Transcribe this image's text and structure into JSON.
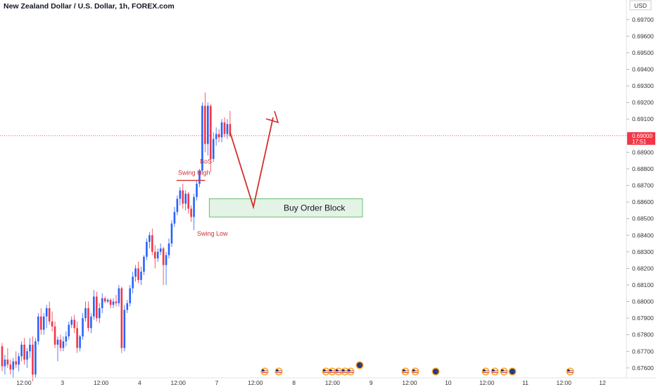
{
  "chart_data": {
    "type": "candlestick",
    "title": "New Zealand Dollar / U.S. Dollar, 1h, FOREX.com",
    "currency": "USD",
    "ylim": [
      0.6754,
      0.6975
    ],
    "y_ticks": [
      "0.69700",
      "0.69600",
      "0.69500",
      "0.69400",
      "0.69300",
      "0.69200",
      "0.69100",
      "0.69000",
      "0.68900",
      "0.68800",
      "0.68700",
      "0.68600",
      "0.68500",
      "0.68400",
      "0.68300",
      "0.68200",
      "0.68100",
      "0.68000",
      "0.67900",
      "0.67800",
      "0.67700",
      "0.67600"
    ],
    "x_ticks": [
      "12:00",
      "3",
      "12:00",
      "4",
      "12:00",
      "7",
      "12:00",
      "8",
      "12:00",
      "9",
      "12:00",
      "10",
      "12:00",
      "11",
      "12:00",
      "12"
    ],
    "current_price": "0.69000",
    "countdown": "17:51",
    "colors": {
      "up": "#2962ff",
      "down": "#f23645",
      "annotation": "#d32f2f",
      "order_block_fill": "#e3f3e6",
      "order_block_border": "#4caf50"
    },
    "candles": [
      [
        0.6773,
        0.6775,
        0.6758,
        0.6761
      ],
      [
        0.6761,
        0.6768,
        0.6756,
        0.6765
      ],
      [
        0.6765,
        0.6772,
        0.676,
        0.6762
      ],
      [
        0.6762,
        0.6765,
        0.6756,
        0.6759
      ],
      [
        0.6759,
        0.6766,
        0.6754,
        0.6764
      ],
      [
        0.6764,
        0.677,
        0.676,
        0.6762
      ],
      [
        0.6762,
        0.6769,
        0.6758,
        0.6767
      ],
      [
        0.6767,
        0.6776,
        0.6764,
        0.6774
      ],
      [
        0.6774,
        0.6778,
        0.6762,
        0.6765
      ],
      [
        0.6765,
        0.6772,
        0.676,
        0.677
      ],
      [
        0.677,
        0.6778,
        0.6766,
        0.6774
      ],
      [
        0.6774,
        0.6779,
        0.6752,
        0.6756
      ],
      [
        0.6756,
        0.6778,
        0.6754,
        0.6776
      ],
      [
        0.6776,
        0.6793,
        0.6774,
        0.6791
      ],
      [
        0.6791,
        0.6796,
        0.678,
        0.6783
      ],
      [
        0.6783,
        0.6793,
        0.678,
        0.6791
      ],
      [
        0.6791,
        0.6798,
        0.6784,
        0.6796
      ],
      [
        0.6796,
        0.68,
        0.6786,
        0.6788
      ],
      [
        0.6788,
        0.6794,
        0.6782,
        0.6785
      ],
      [
        0.6785,
        0.6788,
        0.6772,
        0.6774
      ],
      [
        0.6774,
        0.6779,
        0.6764,
        0.6777
      ],
      [
        0.6777,
        0.678,
        0.677,
        0.6772
      ],
      [
        0.6772,
        0.6779,
        0.677,
        0.6776
      ],
      [
        0.6776,
        0.6782,
        0.6773,
        0.6779
      ],
      [
        0.6779,
        0.6788,
        0.6777,
        0.6786
      ],
      [
        0.6786,
        0.6791,
        0.6784,
        0.6789
      ],
      [
        0.6789,
        0.6792,
        0.6781,
        0.6784
      ],
      [
        0.6784,
        0.6788,
        0.6769,
        0.6772
      ],
      [
        0.6772,
        0.678,
        0.677,
        0.6779
      ],
      [
        0.6779,
        0.6793,
        0.6777,
        0.679
      ],
      [
        0.679,
        0.68,
        0.6788,
        0.6796
      ],
      [
        0.6796,
        0.68,
        0.6782,
        0.6784
      ],
      [
        0.6784,
        0.6793,
        0.6781,
        0.6791
      ],
      [
        0.6791,
        0.6807,
        0.6789,
        0.6803
      ],
      [
        0.6803,
        0.6806,
        0.6788,
        0.679
      ],
      [
        0.679,
        0.6799,
        0.6787,
        0.6796
      ],
      [
        0.6796,
        0.6805,
        0.6793,
        0.6802
      ],
      [
        0.6802,
        0.6803,
        0.6799,
        0.68
      ],
      [
        0.68,
        0.6802,
        0.6799,
        0.6801
      ],
      [
        0.6801,
        0.6802,
        0.6796,
        0.6798
      ],
      [
        0.6798,
        0.6802,
        0.6796,
        0.68
      ],
      [
        0.68,
        0.6804,
        0.6797,
        0.6799
      ],
      [
        0.6799,
        0.681,
        0.6797,
        0.6808
      ],
      [
        0.6808,
        0.6809,
        0.6769,
        0.6772
      ],
      [
        0.6772,
        0.6798,
        0.677,
        0.6795
      ],
      [
        0.6795,
        0.6801,
        0.6793,
        0.6799
      ],
      [
        0.6799,
        0.681,
        0.6797,
        0.6808
      ],
      [
        0.6808,
        0.6818,
        0.6805,
        0.6815
      ],
      [
        0.6815,
        0.6822,
        0.6812,
        0.682
      ],
      [
        0.682,
        0.6824,
        0.6811,
        0.6813
      ],
      [
        0.6813,
        0.6821,
        0.681,
        0.6818
      ],
      [
        0.6818,
        0.6828,
        0.6816,
        0.6827
      ],
      [
        0.6827,
        0.6838,
        0.6825,
        0.6836
      ],
      [
        0.6836,
        0.6842,
        0.6832,
        0.684
      ],
      [
        0.684,
        0.6844,
        0.6828,
        0.683
      ],
      [
        0.683,
        0.6834,
        0.682,
        0.6826
      ],
      [
        0.6826,
        0.6832,
        0.6824,
        0.683
      ],
      [
        0.683,
        0.6835,
        0.6828,
        0.6832
      ],
      [
        0.6832,
        0.6833,
        0.681,
        0.6822
      ],
      [
        0.6822,
        0.683,
        0.681,
        0.6828
      ],
      [
        0.6828,
        0.6838,
        0.6826,
        0.6835
      ],
      [
        0.6835,
        0.6849,
        0.6833,
        0.6847
      ],
      [
        0.6847,
        0.6857,
        0.6845,
        0.6854
      ],
      [
        0.6854,
        0.6864,
        0.6852,
        0.6862
      ],
      [
        0.6862,
        0.6869,
        0.6858,
        0.6867
      ],
      [
        0.6867,
        0.6871,
        0.6856,
        0.6859
      ],
      [
        0.6859,
        0.6867,
        0.6855,
        0.6865
      ],
      [
        0.6865,
        0.6866,
        0.6853,
        0.6856
      ],
      [
        0.6856,
        0.6858,
        0.6848,
        0.6851
      ],
      [
        0.6851,
        0.6865,
        0.6843,
        0.6863
      ],
      [
        0.6863,
        0.6873,
        0.6861,
        0.6871
      ],
      [
        0.6871,
        0.688,
        0.6869,
        0.6879
      ],
      [
        0.6879,
        0.692,
        0.6878,
        0.6918
      ],
      [
        0.6918,
        0.6926,
        0.689,
        0.6895
      ],
      [
        0.6895,
        0.692,
        0.6888,
        0.6918
      ],
      [
        0.6918,
        0.6919,
        0.6878,
        0.6886
      ],
      [
        0.6886,
        0.6902,
        0.6884,
        0.6898
      ],
      [
        0.6898,
        0.6905,
        0.6894,
        0.6901
      ],
      [
        0.6901,
        0.6904,
        0.6896,
        0.6899
      ],
      [
        0.6899,
        0.691,
        0.6896,
        0.6908
      ],
      [
        0.6908,
        0.6911,
        0.6899,
        0.6901
      ],
      [
        0.6901,
        0.691,
        0.6898,
        0.6907
      ],
      [
        0.6907,
        0.6915,
        0.6899,
        0.69
      ]
    ],
    "annotations": {
      "swing_high": "Swing High",
      "bos": "BoS",
      "swing_low": "Swing Low",
      "buy_order_block": "Buy Order Block",
      "order_block_range": [
        0.6851,
        0.6862
      ],
      "swing_high_level": 0.6873
    },
    "event_flags": [
      "US",
      "US",
      "US",
      "US",
      "US",
      "US",
      "US",
      "NZ",
      "US",
      "US",
      "NZ",
      "US",
      "US",
      "US",
      "NZ",
      "US"
    ]
  }
}
